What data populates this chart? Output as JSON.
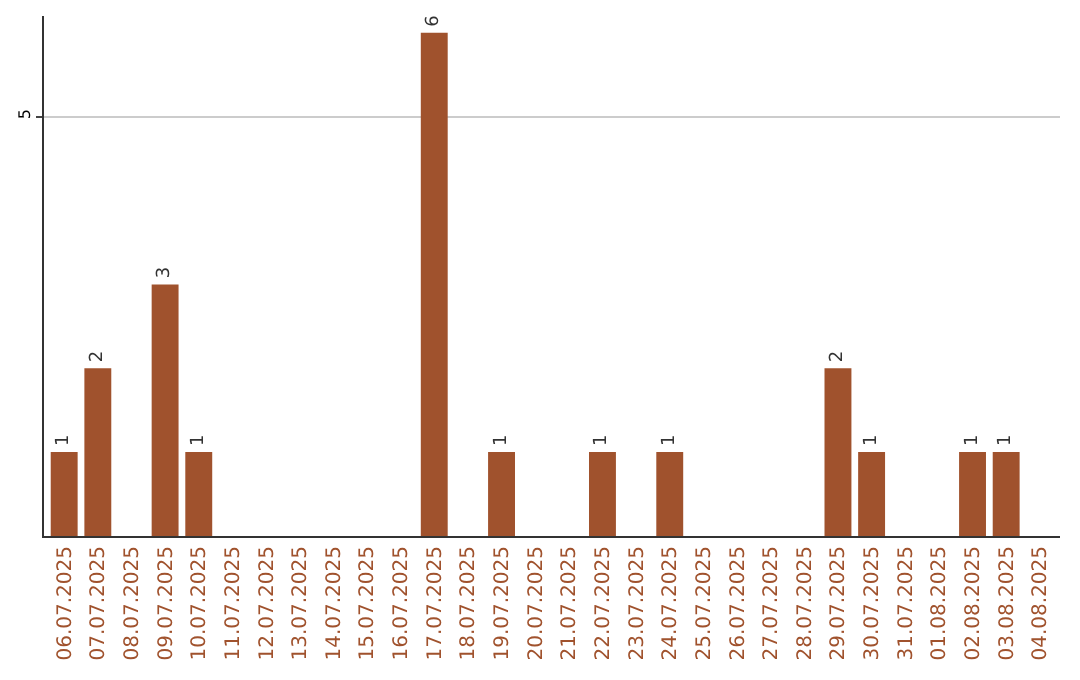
{
  "chart_data": {
    "type": "bar",
    "categories": [
      "06.07.2025",
      "07.07.2025",
      "08.07.2025",
      "09.07.2025",
      "10.07.2025",
      "11.07.2025",
      "12.07.2025",
      "13.07.2025",
      "14.07.2025",
      "15.07.2025",
      "16.07.2025",
      "17.07.2025",
      "18.07.2025",
      "19.07.2025",
      "20.07.2025",
      "21.07.2025",
      "22.07.2025",
      "23.07.2025",
      "24.07.2025",
      "25.07.2025",
      "26.07.2025",
      "27.07.2025",
      "28.07.2025",
      "29.07.2025",
      "30.07.2025",
      "31.07.2025",
      "01.08.2025",
      "02.08.2025",
      "03.08.2025",
      "04.08.2025"
    ],
    "values": [
      1,
      2,
      0,
      3,
      1,
      0,
      0,
      0,
      0,
      0,
      0,
      6,
      0,
      1,
      0,
      0,
      1,
      0,
      1,
      0,
      0,
      0,
      0,
      2,
      1,
      0,
      0,
      1,
      1,
      0
    ],
    "value_labels": [
      "1",
      "2",
      null,
      "3",
      "1",
      null,
      null,
      null,
      null,
      null,
      null,
      "6",
      null,
      "1",
      null,
      null,
      "1",
      null,
      "1",
      null,
      null,
      null,
      null,
      "2",
      "1",
      null,
      null,
      "1",
      "1",
      null
    ],
    "color": "#a0522d",
    "ylim": [
      0,
      6.2
    ],
    "yticks": [
      5
    ],
    "grid": "y",
    "legend": false
  }
}
